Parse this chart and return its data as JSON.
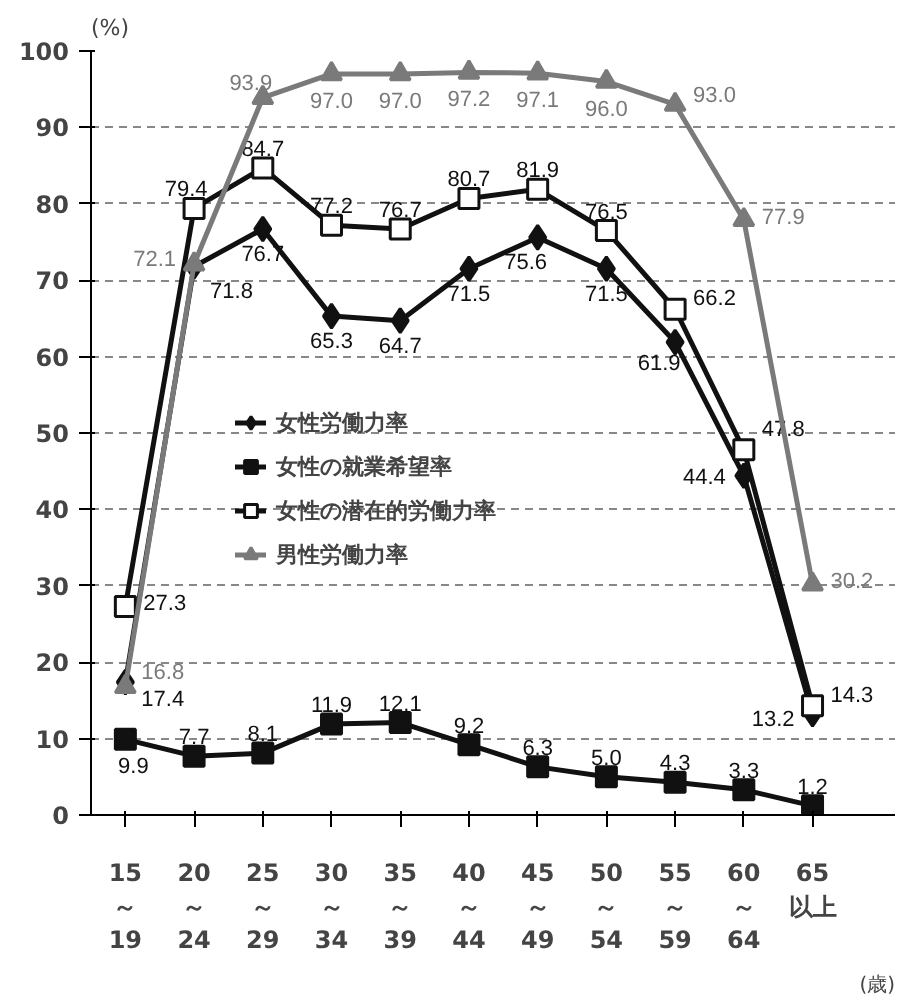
{
  "chart_data": {
    "type": "line",
    "categories": [
      "15\n～\n19",
      "20\n～\n24",
      "25\n～\n29",
      "30\n～\n34",
      "35\n～\n39",
      "40\n～\n44",
      "45\n～\n49",
      "50\n～\n54",
      "55\n～\n59",
      "60\n～\n64",
      "65\n以上"
    ],
    "series": [
      {
        "name": "女性労働力率",
        "color": "#111111",
        "marker": "diamond",
        "values": [
          17.4,
          71.8,
          76.7,
          65.3,
          64.7,
          71.5,
          75.6,
          71.5,
          61.9,
          44.4,
          13.2
        ],
        "value_labels": [
          "17.4",
          "71.8",
          "76.7",
          "65.3",
          "64.7",
          "71.5",
          "75.6",
          "71.5",
          "61.9",
          "44.4",
          "13.2"
        ]
      },
      {
        "name": "女性の就業希望率",
        "color": "#111111",
        "marker": "square",
        "values": [
          9.9,
          7.7,
          8.1,
          11.9,
          12.1,
          9.2,
          6.3,
          5.0,
          4.3,
          3.3,
          1.2
        ],
        "value_labels": [
          "9.9",
          "7.7",
          "8.1",
          "11.9",
          "12.1",
          "9.2",
          "6.3",
          "5.0",
          "4.3",
          "3.3",
          "1.2"
        ]
      },
      {
        "name": "女性の潜在的労働力率",
        "color": "#111111",
        "marker": "square",
        "values": [
          27.3,
          79.4,
          84.7,
          77.2,
          76.7,
          80.7,
          81.9,
          76.5,
          66.2,
          47.8,
          14.3
        ],
        "value_labels": [
          "27.3",
          "79.4",
          "84.7",
          "77.2",
          "76.7",
          "80.7",
          "81.9",
          "76.5",
          "66.2",
          "47.8",
          "14.3"
        ]
      },
      {
        "name": "男性労働力率",
        "color": "#7a7a7a",
        "marker": "triangle",
        "values": [
          16.8,
          72.1,
          93.9,
          97.0,
          97.0,
          97.2,
          97.1,
          96.0,
          93.0,
          77.9,
          30.2
        ],
        "value_labels": [
          "16.8",
          "72.1",
          "93.9",
          "97.0",
          "97.0",
          "97.2",
          "97.1",
          "96.0",
          "93.0",
          "77.9",
          "30.2"
        ]
      }
    ],
    "ylim": [
      0,
      100
    ],
    "yticks": [
      0,
      10,
      20,
      30,
      40,
      50,
      60,
      70,
      80,
      90,
      100
    ],
    "ylabel": "(%)",
    "xlabel": "(歳)",
    "grid": "y",
    "legend": "center"
  }
}
